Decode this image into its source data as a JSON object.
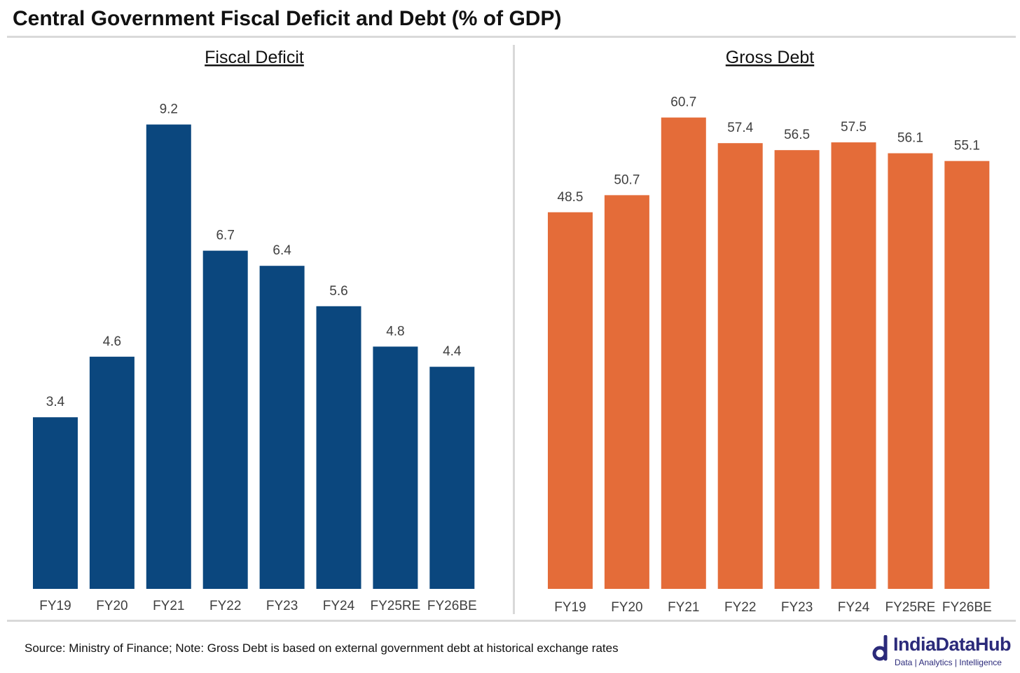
{
  "title": "Central Government Fiscal Deficit and Debt (% of GDP)",
  "colors": {
    "deficit": "#0b477e",
    "debt": "#e46c39",
    "rule": "#d9d9d9",
    "brand": "#2b2a7a"
  },
  "chart_data": [
    {
      "type": "bar",
      "title": "Fiscal Deficit",
      "categories": [
        "FY19",
        "FY20",
        "FY21",
        "FY22",
        "FY23",
        "FY24",
        "FY25RE",
        "FY26BE"
      ],
      "values": [
        3.4,
        4.6,
        9.2,
        6.7,
        6.4,
        5.6,
        4.8,
        4.4
      ],
      "value_labels": [
        "3.4",
        "4.6",
        "9.2",
        "6.7",
        "6.4",
        "5.6",
        "4.8",
        "4.4"
      ],
      "ylim": [
        0,
        10
      ],
      "grid": false,
      "data_labels": true
    },
    {
      "type": "bar",
      "title": "Gross Debt",
      "categories": [
        "FY19",
        "FY20",
        "FY21",
        "FY22",
        "FY23",
        "FY24",
        "FY25RE",
        "FY26BE"
      ],
      "values": [
        48.5,
        50.7,
        60.7,
        57.4,
        56.5,
        57.5,
        56.1,
        55.1
      ],
      "value_labels": [
        "48.5",
        "50.7",
        "60.7",
        "57.4",
        "56.5",
        "57.5",
        "56.1",
        "55.1"
      ],
      "ylim": [
        0,
        65
      ],
      "grid": false,
      "data_labels": true
    }
  ],
  "footer": {
    "source": "Source: Ministry of Finance; Note: Gross Debt is based on external government debt at historical exchange rates"
  },
  "logo": {
    "name": "IndiaDataHub",
    "tagline": "Data | Analytics | Intelligence"
  }
}
